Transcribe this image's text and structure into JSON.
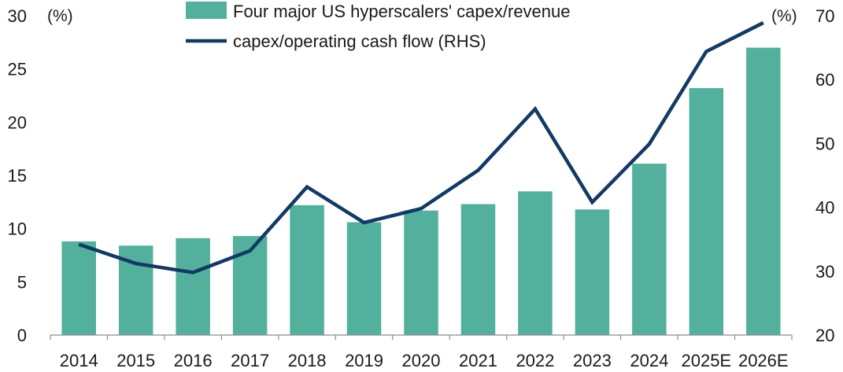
{
  "chart_data": {
    "type": "bar",
    "title": "",
    "xlabel": "",
    "categories": [
      "2014",
      "2015",
      "2016",
      "2017",
      "2018",
      "2019",
      "2020",
      "2021",
      "2022",
      "2023",
      "2024",
      "2025E",
      "2026E"
    ],
    "series": [
      {
        "name": "Four major US hyperscalers' capex/revenue",
        "type": "bar",
        "axis": "left",
        "color": "#52b09c",
        "values": [
          8.8,
          8.4,
          9.1,
          9.3,
          12.2,
          10.6,
          11.7,
          12.3,
          13.5,
          11.8,
          16.1,
          23.2,
          27.0
        ]
      },
      {
        "name": "capex/operating cash flow (RHS)",
        "type": "line",
        "axis": "right",
        "color": "#123a64",
        "values": [
          34.2,
          31.2,
          29.8,
          33.2,
          43.2,
          37.6,
          39.8,
          45.8,
          55.4,
          40.8,
          49.9,
          64.4,
          68.9
        ]
      }
    ],
    "left_axis": {
      "unit": "(%)",
      "ylim": [
        0,
        30
      ],
      "ticks": [
        "0",
        "5",
        "10",
        "15",
        "20",
        "25",
        "30"
      ]
    },
    "right_axis": {
      "unit": "(%)",
      "ylim": [
        20,
        70
      ],
      "ticks": [
        "20",
        "30",
        "40",
        "50",
        "60",
        "70"
      ]
    },
    "grid": false,
    "legend_position": "top-center"
  }
}
